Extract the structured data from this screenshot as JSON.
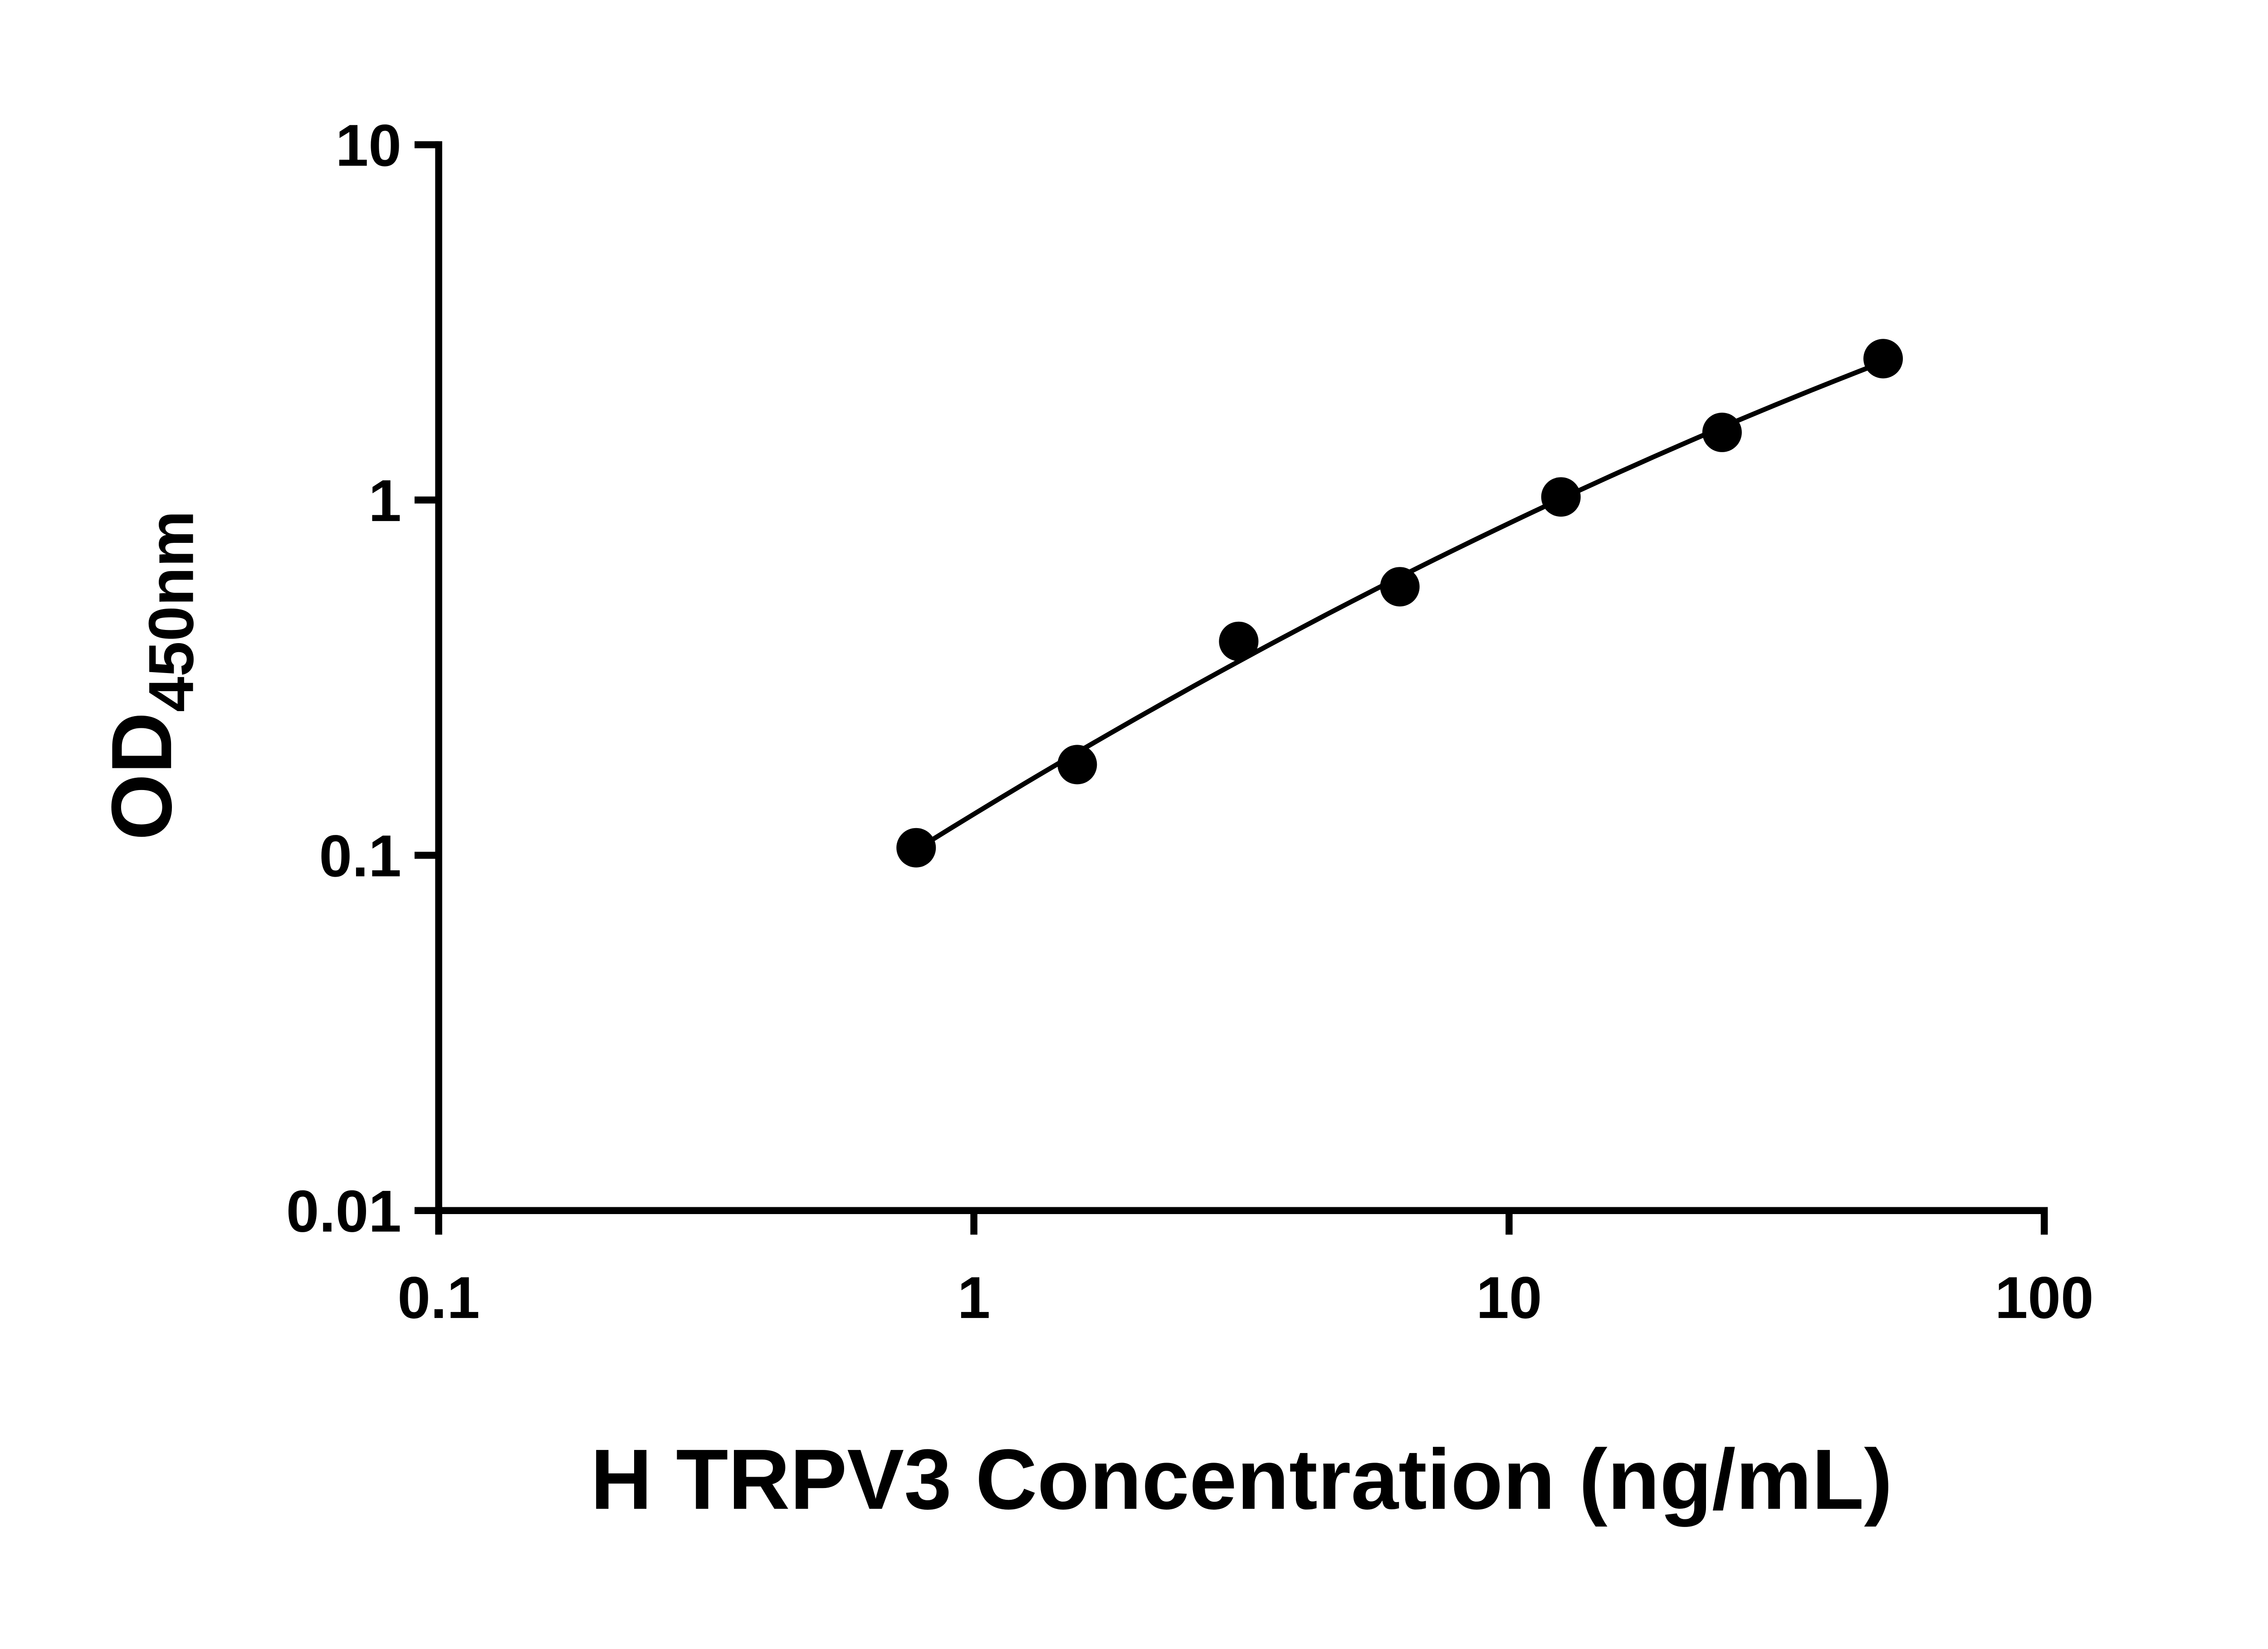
{
  "figure": {
    "background_color": "#ffffff",
    "foreground_color": "#000000"
  },
  "chart_data": {
    "type": "scatter",
    "title": "",
    "xlabel": "H TRPV3 Concentration (ng/mL)",
    "ylabel": "OD450nm",
    "ylabel_main": "OD",
    "ylabel_sub": "450nm",
    "x_scale": "log10",
    "y_scale": "log10",
    "xlim": [
      0.1,
      100
    ],
    "ylim": [
      0.01,
      10
    ],
    "x_ticks": [
      0.1,
      1,
      10,
      100
    ],
    "x_tick_labels": [
      "0.1",
      "1",
      "10",
      "100"
    ],
    "y_ticks": [
      0.01,
      0.1,
      1,
      10
    ],
    "y_tick_labels": [
      "0.01",
      "0.1",
      "1",
      "10"
    ],
    "grid": false,
    "legend": false,
    "marker": {
      "shape": "circle",
      "color": "#000000"
    },
    "line": {
      "color": "#000000",
      "style": "solid"
    },
    "points": [
      {
        "x": 0.78,
        "y": 0.105
      },
      {
        "x": 1.56,
        "y": 0.18
      },
      {
        "x": 3.125,
        "y": 0.4
      },
      {
        "x": 6.25,
        "y": 0.57
      },
      {
        "x": 12.5,
        "y": 1.02
      },
      {
        "x": 25,
        "y": 1.55
      },
      {
        "x": 50,
        "y": 2.5
      }
    ],
    "trendline": {
      "type": "smooth-fit-loglog",
      "x_start": 0.78,
      "x_end": 50
    }
  }
}
